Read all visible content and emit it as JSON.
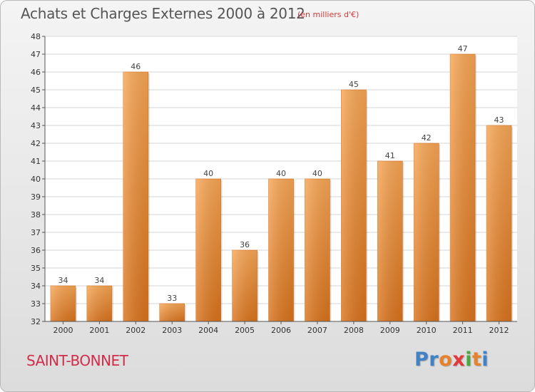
{
  "chart_data": {
    "type": "bar",
    "title": "Achats et Charges Externes 2000 à 2012",
    "subtitle": "(en milliers d'€)",
    "categories": [
      "2000",
      "2001",
      "2002",
      "2003",
      "2004",
      "2005",
      "2006",
      "2007",
      "2008",
      "2009",
      "2010",
      "2011",
      "2012"
    ],
    "values": [
      34,
      34,
      46,
      33,
      40,
      36,
      40,
      40,
      45,
      41,
      42,
      47,
      43
    ],
    "ylim": [
      32,
      48
    ],
    "yticks": [
      32,
      33,
      34,
      35,
      36,
      37,
      38,
      39,
      40,
      41,
      42,
      43,
      44,
      45,
      46,
      47,
      48
    ],
    "grid": true,
    "bar_color": "#e8822a",
    "bar_color_light": "#f7a655",
    "xlabel": "",
    "ylabel": ""
  },
  "footer": {
    "place": "SAINT-BONNET",
    "logo_letters": [
      {
        "ch": "P",
        "color": "#3f82c6"
      },
      {
        "ch": "r",
        "color": "#3f82c6"
      },
      {
        "ch": "o",
        "color": "#e8822a"
      },
      {
        "ch": "x",
        "color": "#e23a3a"
      },
      {
        "ch": "i",
        "color": "#4aa83f"
      },
      {
        "ch": "t",
        "color": "#e8822a"
      },
      {
        "ch": "i",
        "color": "#3f82c6"
      }
    ]
  }
}
